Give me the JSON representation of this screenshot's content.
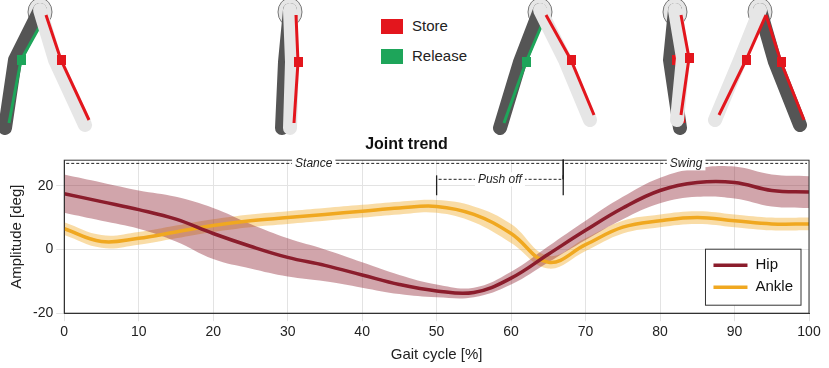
{
  "chart_data": {
    "type": "line",
    "title": "Joint trend",
    "x_label": "Gait cycle [%]",
    "y_label": "Amplitude [deg]",
    "x": [
      0,
      5,
      10,
      15,
      20,
      25,
      30,
      35,
      40,
      45,
      50,
      55,
      60,
      65,
      70,
      75,
      80,
      85,
      90,
      95,
      100
    ],
    "series": [
      {
        "name": "Hip",
        "color": "#8b1d2c",
        "values": [
          17.5,
          15,
          12.5,
          9.5,
          5,
          1,
          -2.5,
          -5,
          -8,
          -11,
          -13,
          -13.5,
          -9,
          -1.5,
          6,
          13,
          18.5,
          21,
          21,
          18.5,
          18
        ],
        "band_lower": [
          11.5,
          9,
          6.5,
          2.5,
          -3,
          -6,
          -8.5,
          -10,
          -12,
          -14,
          -15,
          -15,
          -11,
          -4,
          3,
          9.5,
          14.5,
          16.5,
          16,
          13.5,
          13
        ],
        "band_upper": [
          23.5,
          21,
          18.5,
          16.5,
          13,
          8,
          3.5,
          0,
          -4,
          -8,
          -11,
          -12,
          -7,
          1,
          9,
          16.5,
          22.5,
          25.5,
          26,
          23.5,
          23
        ]
      },
      {
        "name": "Ankle",
        "color": "#f0a820",
        "values": [
          6.5,
          2.5,
          3.5,
          5.5,
          7.5,
          9,
          10,
          11,
          12,
          13,
          13.5,
          11,
          5,
          -4,
          1.5,
          7,
          9,
          10,
          9,
          8,
          8
        ],
        "band_lower": [
          4.5,
          0.5,
          1.5,
          3.5,
          5.5,
          7,
          8,
          9,
          10,
          11,
          11.5,
          8.5,
          2,
          -6,
          -0.5,
          5,
          7,
          8,
          7,
          6,
          6
        ],
        "band_upper": [
          8.5,
          4.5,
          5.5,
          7.5,
          9.5,
          11,
          12,
          13,
          14,
          15,
          15.5,
          13.5,
          8,
          -2,
          3.5,
          9,
          11,
          12,
          11,
          10,
          10
        ]
      }
    ],
    "xlim": [
      0,
      100
    ],
    "xticks": [
      0,
      10,
      20,
      30,
      40,
      50,
      60,
      70,
      80,
      90,
      100
    ],
    "ylim": [
      -20,
      28
    ],
    "yticks": [
      -20,
      0,
      20
    ],
    "grid": true,
    "legend": "lower right",
    "annotations": [
      {
        "text": "Stance",
        "x": [
          0,
          67
        ],
        "y": 27
      },
      {
        "text": "Push off",
        "x": [
          50,
          67
        ],
        "y": 22
      },
      {
        "text": "Swing",
        "x": [
          67,
          100
        ],
        "y": 27
      }
    ]
  },
  "illustration_legend": [
    {
      "label": "Store",
      "color": "#e3161d"
    },
    {
      "label": "Release",
      "color": "#1ea55a"
    }
  ]
}
